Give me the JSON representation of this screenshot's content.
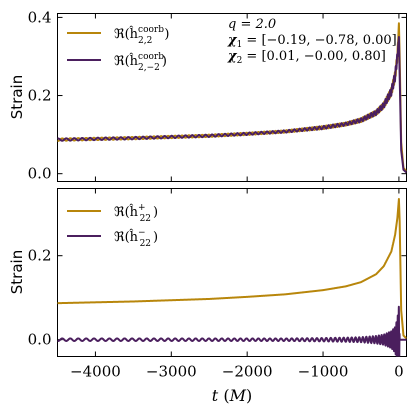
{
  "chart_data": [
    {
      "type": "line",
      "ylabel": "Strain",
      "xlim": [
        -4500,
        100
      ],
      "ylim": [
        -0.02,
        0.41
      ],
      "yticks": [
        0.0,
        0.2,
        0.4
      ],
      "ytick_labels": [
        "0.0",
        "0.2",
        "0.4"
      ],
      "xticks": [
        -4000,
        -3000,
        -2000,
        -1000,
        0
      ],
      "legend_position": "top-left",
      "series": [
        {
          "name": "ℜ(h^coorb_2,2)",
          "legend_label": "ℜ(ĥ",
          "legend_sup": "coorb",
          "legend_sub": "2,2",
          "color": "#b8860b",
          "x": [
            -4500,
            -4000,
            -3500,
            -3000,
            -2500,
            -2000,
            -1500,
            -1000,
            -700,
            -500,
            -300,
            -200,
            -100,
            -50,
            -20,
            0,
            10,
            30,
            60,
            100
          ],
          "y": [
            0.087,
            0.089,
            0.091,
            0.094,
            0.097,
            0.102,
            0.108,
            0.118,
            0.127,
            0.137,
            0.156,
            0.175,
            0.21,
            0.25,
            0.3,
            0.385,
            0.3,
            0.08,
            0.015,
            0.005
          ],
          "oscillation_amplitude": [
            0.003,
            0.003,
            0.003,
            0.003,
            0.003,
            0.003,
            0.003,
            0.004,
            0.004,
            0.005,
            0.006,
            0.007,
            0.01,
            0.012,
            0.01,
            0.0,
            0.0,
            0.0,
            0.0,
            0.0
          ],
          "oscillation_phase": 1
        },
        {
          "name": "ℜ(h^coorb_2,−2)",
          "legend_label": "ℜ(ĥ",
          "legend_sup": "coorb",
          "legend_sub": "2,−2",
          "color": "#4b1f5e",
          "x": [
            -4500,
            -4000,
            -3500,
            -3000,
            -2500,
            -2000,
            -1500,
            -1000,
            -700,
            -500,
            -300,
            -200,
            -100,
            -50,
            -20,
            0,
            10,
            30,
            60,
            100
          ],
          "y": [
            0.087,
            0.089,
            0.091,
            0.094,
            0.097,
            0.102,
            0.108,
            0.118,
            0.127,
            0.137,
            0.156,
            0.175,
            0.21,
            0.25,
            0.3,
            0.35,
            0.25,
            0.06,
            0.01,
            0.003
          ],
          "oscillation_amplitude": [
            0.003,
            0.003,
            0.003,
            0.003,
            0.003,
            0.003,
            0.003,
            0.004,
            0.004,
            0.005,
            0.006,
            0.007,
            0.01,
            0.012,
            0.01,
            0.0,
            0.0,
            0.0,
            0.0,
            0.0
          ],
          "oscillation_phase": -1
        }
      ],
      "annotation": {
        "line1": "q = 2.0",
        "line2_label": "χ",
        "line2_sub": "1",
        "line2_value": " = [−0.19, −0.78, 0.00]",
        "line3_label": "χ",
        "line3_sub": "2",
        "line3_value": " = [0.01, −0.00, 0.80]"
      }
    },
    {
      "type": "line",
      "ylabel": "Strain",
      "xlabel_italic": "t",
      "xlabel_unit": "M",
      "xlim": [
        -4500,
        100
      ],
      "ylim": [
        -0.04,
        0.36
      ],
      "yticks": [
        0.0,
        0.2
      ],
      "ytick_labels": [
        "0.0",
        "0.2"
      ],
      "xticks": [
        -4000,
        -3000,
        -2000,
        -1000,
        0
      ],
      "xtick_labels": [
        "−4000",
        "−3000",
        "−2000",
        "−1000",
        "0"
      ],
      "legend_position": "top-left",
      "series": [
        {
          "name": "ℜ(h^+_22)",
          "legend_label": "ℜ(ĥ",
          "legend_sup": "+",
          "legend_sub": "22",
          "color": "#b8860b",
          "x": [
            -4500,
            -4000,
            -3500,
            -3000,
            -2500,
            -2000,
            -1500,
            -1000,
            -700,
            -500,
            -300,
            -200,
            -100,
            -50,
            -20,
            0,
            10,
            30,
            60,
            100
          ],
          "y": [
            0.087,
            0.089,
            0.091,
            0.094,
            0.097,
            0.102,
            0.108,
            0.118,
            0.127,
            0.137,
            0.156,
            0.175,
            0.21,
            0.25,
            0.29,
            0.335,
            0.28,
            0.07,
            0.01,
            0.003
          ],
          "oscillation_amplitude": [
            0,
            0,
            0,
            0,
            0,
            0,
            0,
            0,
            0,
            0,
            0,
            0,
            0,
            0,
            0,
            0,
            0,
            0,
            0,
            0
          ],
          "oscillation_phase": 1
        },
        {
          "name": "ℜ(h^−_22)",
          "legend_label": "ℜ(ĥ",
          "legend_sup": "−",
          "legend_sub": "22",
          "color": "#4b1f5e",
          "x": [
            -4500,
            -4000,
            -3500,
            -3000,
            -2500,
            -2000,
            -1500,
            -1000,
            -700,
            -500,
            -300,
            -200,
            -100,
            -50,
            -20,
            0,
            10,
            30,
            60,
            100
          ],
          "y": [
            0,
            0,
            0,
            0,
            0,
            0,
            0,
            0,
            0,
            0,
            0,
            0,
            0,
            0,
            0,
            0,
            0,
            0,
            0,
            0
          ],
          "oscillation_amplitude": [
            0.003,
            0.003,
            0.003,
            0.003,
            0.003,
            0.003,
            0.003,
            0.004,
            0.005,
            0.006,
            0.009,
            0.012,
            0.02,
            0.03,
            0.05,
            0.08,
            0.0,
            0.0,
            0.0,
            0.0
          ],
          "oscillation_phase": 1
        }
      ]
    }
  ]
}
